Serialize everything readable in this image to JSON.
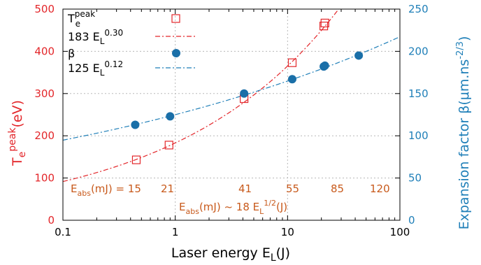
{
  "chart_data": {
    "type": "scatter",
    "xlabel": {
      "main": "Laser energy E",
      "sub": "L",
      "tail": "(J)"
    },
    "ylabel_left": {
      "main": "T",
      "sub": "e",
      "sup": "peak",
      "tail": "(eV)"
    },
    "ylabel_right": {
      "main": "Expansion factor β(μm.ns",
      "sup": "-2/3",
      "tail": ")"
    },
    "x_scale": "log",
    "xlim": [
      0.1,
      100
    ],
    "x_ticks": [
      0.1,
      1,
      10,
      100
    ],
    "x_tick_labels": [
      "0.1",
      "1",
      "10",
      "100"
    ],
    "ylim_left": [
      0,
      500
    ],
    "left_ticks": [
      0,
      100,
      200,
      300,
      400,
      500
    ],
    "left_tick_labels": [
      "0",
      "100",
      "200",
      "300",
      "400",
      "500"
    ],
    "ylim_right": [
      0,
      250
    ],
    "right_ticks": [
      0,
      50,
      100,
      150,
      200,
      250
    ],
    "right_tick_labels": [
      "0",
      "50",
      "100",
      "150",
      "200",
      "250"
    ],
    "legend_position": "top-left",
    "series": [
      {
        "name": {
          "main": "T",
          "sub": "e",
          "sup": "peak"
        },
        "axis": "left",
        "marker": "open-square",
        "color": "#e3262a",
        "points": [
          [
            0.45,
            143
          ],
          [
            0.88,
            178
          ],
          [
            4.1,
            288
          ],
          [
            11,
            373
          ],
          [
            21,
            460
          ],
          [
            21.5,
            467
          ]
        ]
      },
      {
        "name": {
          "main": "183 E",
          "sub": "L",
          "sup": "0.30"
        },
        "axis": "left",
        "kind": "fit",
        "line": "dash-dot",
        "color": "#e3262a",
        "coef": 183,
        "exp": 0.3
      },
      {
        "name": {
          "main": "β"
        },
        "axis": "right",
        "marker": "filled-circle",
        "color": "#1a6fa8",
        "points": [
          [
            0.44,
            113
          ],
          [
            0.9,
            123
          ],
          [
            4.1,
            150
          ],
          [
            11,
            167
          ],
          [
            21,
            182
          ],
          [
            21.5,
            183
          ],
          [
            43,
            195
          ]
        ]
      },
      {
        "name": {
          "main": "125 E",
          "sub": "L",
          "sup": "0.12"
        },
        "axis": "right",
        "kind": "fit",
        "line": "dash-dot",
        "color": "#1f7fb8",
        "coef": 125,
        "exp": 0.12
      }
    ],
    "annotations": {
      "eabs_label": {
        "main": "E",
        "sub": "abs",
        "tail": "(mJ) = 15"
      },
      "eabs_values": [
        "21",
        "41",
        "55",
        "85",
        "120"
      ],
      "relation": {
        "main": "E",
        "sub": "abs",
        "mid": "(mJ) ~ 18 E",
        "sub2": "L",
        "sup": "1/2",
        "tail": "(J)"
      }
    },
    "grid": true
  },
  "colors": {
    "left_axis": "#e3262a",
    "right_axis": "#1f7fb8",
    "annotation": "#c85a1c",
    "grid": "#b8b8b8"
  }
}
